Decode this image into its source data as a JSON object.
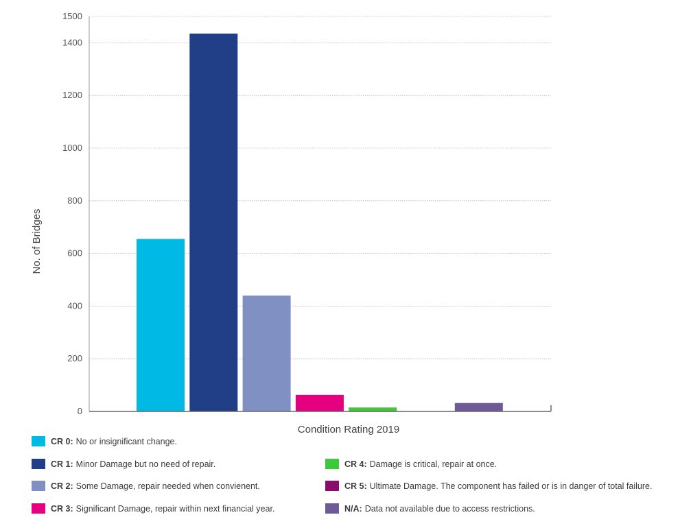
{
  "chart_data": {
    "type": "bar",
    "title": "",
    "xlabel": "Condition Rating 2019",
    "ylabel": "No. of Bridges",
    "ylim": [
      0,
      1500
    ],
    "yticks": [
      "0",
      "200",
      "400",
      "600",
      "800",
      "1000",
      "1200",
      "1400",
      "1500"
    ],
    "grid": true,
    "categories": [
      "CR 0",
      "CR 1",
      "CR 2",
      "CR 3",
      "CR 4",
      "CR 5",
      "N/A"
    ],
    "values": [
      655,
      1435,
      440,
      63,
      15,
      0,
      32
    ],
    "colors": [
      "#00b9e4",
      "#213f87",
      "#8190c3",
      "#e4007e",
      "#3ec83c",
      "#8a0d6b",
      "#6e5a96"
    ]
  },
  "legend": [
    {
      "code": "CR 0:",
      "text": "No or insignificant change.",
      "color": "#00b9e4"
    },
    {
      "code": "CR 1:",
      "text": "Minor Damage but no need of repair.",
      "color": "#213f87"
    },
    {
      "code": "CR 2:",
      "text": "Some Damage, repair needed when convienent.",
      "color": "#8190c3"
    },
    {
      "code": "CR 3:",
      "text": "Significant Damage, repair within next financial  year.",
      "color": "#e4007e"
    },
    {
      "code": "CR 4:",
      "text": "Damage is critical, repair at once.",
      "color": "#3ec83c"
    },
    {
      "code": "CR 5:",
      "text": "Ultimate Damage. The component has failed or is in danger of total failure.",
      "color": "#8a0d6b"
    },
    {
      "code": "N/A:",
      "text": "Data not available due to access restrictions.",
      "color": "#6e5a96"
    }
  ]
}
